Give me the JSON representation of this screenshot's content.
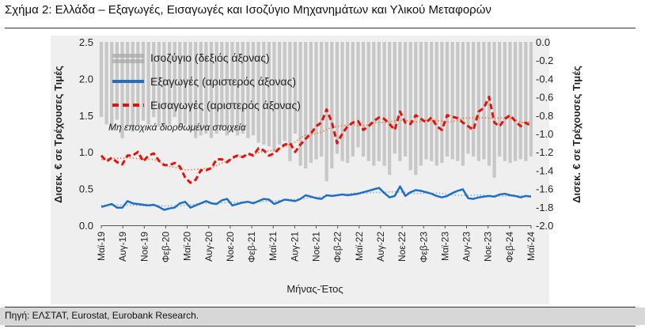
{
  "figure": {
    "title": "Σχήμα 2: Ελλάδα – Εξαγωγές, Εισαγωγές και Ισοζύγιο Μηχανημάτων και Υλικού Μεταφορών",
    "source": "Πηγή: ΕΛΣΤΑΤ, Eurostat, Eurobank Research."
  },
  "chart_data": {
    "type": "line",
    "xlabel": "Μήνας-Έτος",
    "ylabel_left": "Δισεκ. € σε Τρέχουσες Τιμές",
    "ylabel_right": "Δισεκ. € σε Τρέχουσες Τιμές",
    "ylim_left": [
      0,
      2.5
    ],
    "ylim_right": [
      -2.0,
      0.0
    ],
    "yticks_left": [
      "0.0",
      "0.5",
      "1.0",
      "1.5",
      "2.0",
      "2.5"
    ],
    "yticks_right": [
      "0.0",
      "-0.2",
      "-0.4",
      "-0.6",
      "-0.8",
      "-1.0",
      "-1.2",
      "-1.4",
      "-1.6",
      "-1.8",
      "-2.0"
    ],
    "x_tick_labels": [
      "Μαϊ-19",
      "Αυγ-19",
      "Νοε-19",
      "Φεβ-20",
      "Μαϊ-20",
      "Αυγ-20",
      "Νοε-20",
      "Φεβ-21",
      "Μαϊ-21",
      "Αυγ-21",
      "Νοε-21",
      "Φεβ-22",
      "Μαϊ-22",
      "Αυγ-22",
      "Νοε-22",
      "Φεβ-23",
      "Μαϊ-23",
      "Αυγ-23",
      "Νοε-23",
      "Φεβ-24",
      "Μαϊ-24"
    ],
    "annotation": "Μη εποχικά διορθωμένα στοιχεία",
    "legend": [
      {
        "name": "Ισοζύγιο (δεξιός άξονας)",
        "style": "grey-dotted-bars"
      },
      {
        "name": "Εξαγωγές (αριστερός άξονας)",
        "style": "blue-solid"
      },
      {
        "name": "Εισαγωγές (αριστερός άξονας)",
        "style": "red-dashed"
      }
    ],
    "colors": {
      "balance": "#a6a6a6",
      "exports": "#1f6fc5",
      "imports": "#e3120b",
      "trend_imports": "#f07a3a",
      "trend_exports": "#8aaed8"
    },
    "series": [
      {
        "name": "Ισοζύγιο (δεξιός άξονας)",
        "axis": "right",
        "values": [
          -0.82,
          -0.9,
          -0.95,
          -0.85,
          -1.05,
          -0.92,
          -0.98,
          -0.92,
          -0.86,
          -0.9,
          -0.82,
          -0.92,
          -0.92,
          -0.9,
          -0.82,
          -0.92,
          -0.9,
          -0.97,
          -1.05,
          -1.02,
          -1.0,
          -1.05,
          -1.0,
          -0.95,
          -1.02,
          -0.98,
          -1.02,
          -1.0,
          -1.05,
          -1.02,
          -1.1,
          -1.12,
          -1.14,
          -1.2,
          -1.12,
          -1.08,
          -1.3,
          -1.0,
          -1.35,
          -1.38,
          -1.32,
          -1.28,
          -1.25,
          -1.52,
          -1.38,
          -1.22,
          -1.3,
          -1.32,
          -1.25,
          -1.15,
          -1.25,
          -1.3,
          -1.35,
          -1.3,
          -1.35,
          -1.45,
          -1.22,
          -1.3,
          -1.25,
          -1.4,
          -1.45,
          -1.35,
          -1.28,
          -1.3,
          -1.35,
          -1.32,
          -1.25,
          -1.28,
          -1.3,
          -1.35,
          -1.22,
          -1.25,
          -1.3,
          -1.28,
          -1.35,
          -1.48,
          -1.25,
          -1.3,
          -1.32,
          -1.3,
          -1.28,
          -1.3,
          -1.25
        ]
      },
      {
        "name": "Εξαγωγές (αριστερός άξονας)",
        "axis": "left",
        "values": [
          0.25,
          0.27,
          0.29,
          0.24,
          0.24,
          0.33,
          0.3,
          0.29,
          0.28,
          0.27,
          0.28,
          0.25,
          0.21,
          0.23,
          0.24,
          0.3,
          0.32,
          0.24,
          0.27,
          0.3,
          0.33,
          0.3,
          0.29,
          0.34,
          0.36,
          0.27,
          0.29,
          0.31,
          0.32,
          0.3,
          0.33,
          0.36,
          0.35,
          0.29,
          0.32,
          0.35,
          0.34,
          0.33,
          0.36,
          0.41,
          0.39,
          0.37,
          0.36,
          0.41,
          0.4,
          0.41,
          0.42,
          0.41,
          0.42,
          0.43,
          0.45,
          0.47,
          0.49,
          0.51,
          0.44,
          0.38,
          0.4,
          0.53,
          0.4,
          0.45,
          0.48,
          0.47,
          0.45,
          0.43,
          0.4,
          0.38,
          0.4,
          0.44,
          0.47,
          0.49,
          0.37,
          0.36,
          0.38,
          0.39,
          0.4,
          0.39,
          0.42,
          0.43,
          0.41,
          0.4,
          0.38,
          0.4,
          0.39
        ]
      },
      {
        "name": "Εισαγωγές (αριστερός άξονας)",
        "axis": "left",
        "values": [
          0.95,
          0.87,
          0.92,
          0.86,
          0.83,
          0.95,
          0.95,
          1.0,
          0.87,
          0.95,
          0.98,
          0.88,
          0.82,
          0.82,
          0.85,
          0.8,
          0.65,
          0.58,
          0.62,
          0.75,
          0.75,
          0.78,
          0.9,
          0.9,
          0.86,
          0.92,
          0.95,
          0.93,
          0.98,
          0.95,
          1.05,
          1.02,
          0.95,
          0.98,
          1.05,
          1.1,
          1.12,
          1.0,
          1.1,
          1.18,
          1.25,
          1.35,
          1.4,
          1.58,
          1.4,
          1.12,
          1.25,
          1.35,
          1.4,
          1.42,
          1.3,
          1.35,
          1.42,
          1.47,
          1.45,
          1.38,
          1.3,
          1.55,
          1.4,
          1.38,
          1.5,
          1.45,
          1.4,
          1.47,
          1.35,
          1.3,
          1.5,
          1.48,
          1.46,
          1.4,
          1.35,
          1.3,
          1.55,
          1.6,
          1.75,
          1.4,
          1.35,
          1.45,
          1.5,
          1.42,
          1.35,
          1.4,
          1.35
        ]
      }
    ]
  }
}
